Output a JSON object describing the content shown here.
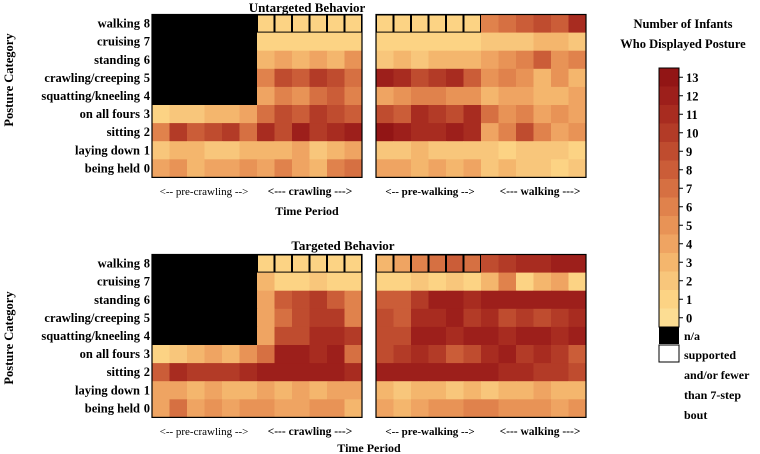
{
  "panels": [
    {
      "title": "Untargeted Behavior",
      "ylabel": "Posture Category",
      "xlabel": "Time Period",
      "period_labels": [
        "<-- pre-crawling -->",
        "<--- crawling --->",
        "<-- pre-walking -->",
        "<--- walking --->"
      ]
    },
    {
      "title": "Targeted Behavior",
      "ylabel": "Posture Category",
      "xlabel": "Time Period",
      "period_labels": [
        "<-- pre-crawling -->",
        "<--- crawling --->",
        "<-- pre-walking -->",
        "<--- walking --->"
      ]
    }
  ],
  "legend": {
    "title_line1": "Number of Infants",
    "title_line2": "Who Displayed Posture",
    "na_label": "n/a",
    "supported_lines": [
      "supported",
      "and/or fewer",
      "than 7-step",
      "bout"
    ]
  },
  "chart_data": [
    {
      "type": "heatmap",
      "title": "Untargeted Behavior",
      "xlabel": "Time Period",
      "ylabel": "Posture Category",
      "rows": [
        "walking",
        "cruising",
        "standing",
        "crawling/creeping",
        "squatting/kneeling",
        "on all fours",
        "sitting",
        "laying down",
        "being held"
      ],
      "row_codes": [
        8,
        7,
        6,
        5,
        4,
        3,
        2,
        1,
        0
      ],
      "colorbar": {
        "min": 0,
        "max": 13,
        "ticks": [
          0,
          1,
          2,
          3,
          4,
          5,
          6,
          7,
          8,
          9,
          10,
          11,
          12,
          13
        ],
        "label": "Number of Infants Who Displayed Posture"
      },
      "special_values": {
        "n/a": "black",
        "supported and/or fewer than 7-step bout": "white"
      },
      "blocks": [
        {
          "periods": [
            "pre-crawling",
            "crawling"
          ],
          "columns": 12,
          "values": [
            [
              "n/a",
              "n/a",
              "n/a",
              "n/a",
              "n/a",
              "n/a",
              1,
              1,
              1,
              1,
              1,
              1
            ],
            [
              "n/a",
              "n/a",
              "n/a",
              "n/a",
              "n/a",
              "n/a",
              1,
              1,
              1,
              1,
              1,
              1
            ],
            [
              "n/a",
              "n/a",
              "n/a",
              "n/a",
              "n/a",
              "n/a",
              3,
              4,
              3,
              4,
              3,
              5
            ],
            [
              "n/a",
              "n/a",
              "n/a",
              "n/a",
              "n/a",
              "n/a",
              6,
              9,
              8,
              10,
              9,
              7
            ],
            [
              "n/a",
              "n/a",
              "n/a",
              "n/a",
              "n/a",
              "n/a",
              4,
              6,
              5,
              7,
              8,
              6
            ],
            [
              1,
              2,
              2,
              3,
              3,
              4,
              7,
              9,
              8,
              10,
              9,
              8
            ],
            [
              6,
              10,
              8,
              9,
              10,
              7,
              11,
              9,
              12,
              10,
              11,
              12
            ],
            [
              2,
              3,
              3,
              2,
              2,
              3,
              3,
              3,
              4,
              2,
              3,
              4
            ],
            [
              4,
              5,
              3,
              4,
              4,
              5,
              4,
              6,
              4,
              3,
              6,
              7
            ]
          ]
        },
        {
          "periods": [
            "pre-walking",
            "walking"
          ],
          "columns": 12,
          "values": [
            [
              1,
              1,
              1,
              1,
              1,
              1,
              6,
              7,
              8,
              9,
              8,
              11
            ],
            [
              1,
              1,
              1,
              1,
              1,
              1,
              2,
              2,
              2,
              3,
              3,
              2
            ],
            [
              2,
              3,
              2,
              3,
              3,
              3,
              4,
              5,
              6,
              8,
              5,
              6
            ],
            [
              12,
              11,
              9,
              10,
              11,
              8,
              5,
              6,
              5,
              3,
              5,
              3
            ],
            [
              4,
              5,
              6,
              6,
              5,
              5,
              3,
              4,
              4,
              3,
              3,
              4
            ],
            [
              9,
              8,
              11,
              10,
              9,
              11,
              7,
              5,
              6,
              4,
              5,
              4
            ],
            [
              13,
              12,
              11,
              11,
              12,
              11,
              4,
              6,
              9,
              6,
              4,
              5
            ],
            [
              2,
              2,
              3,
              2,
              2,
              2,
              2,
              1,
              2,
              2,
              2,
              1
            ],
            [
              4,
              4,
              3,
              4,
              3,
              4,
              2,
              3,
              2,
              2,
              1,
              2
            ]
          ]
        }
      ]
    },
    {
      "type": "heatmap",
      "title": "Targeted Behavior",
      "xlabel": "Time Period",
      "ylabel": "Posture Category",
      "rows": [
        "walking",
        "cruising",
        "standing",
        "crawling/creeping",
        "squatting/kneeling",
        "on all fours",
        "sitting",
        "laying down",
        "being held"
      ],
      "row_codes": [
        8,
        7,
        6,
        5,
        4,
        3,
        2,
        1,
        0
      ],
      "colorbar": {
        "min": 0,
        "max": 13,
        "ticks": [
          0,
          1,
          2,
          3,
          4,
          5,
          6,
          7,
          8,
          9,
          10,
          11,
          12,
          13
        ],
        "label": "Number of Infants Who Displayed Posture"
      },
      "special_values": {
        "n/a": "black",
        "supported and/or fewer than 7-step bout": "white"
      },
      "blocks": [
        {
          "periods": [
            "pre-crawling",
            "crawling"
          ],
          "columns": 12,
          "values": [
            [
              "n/a",
              "n/a",
              "n/a",
              "n/a",
              "n/a",
              "n/a",
              1,
              1,
              1,
              1,
              1,
              1
            ],
            [
              "n/a",
              "n/a",
              "n/a",
              "n/a",
              "n/a",
              "n/a",
              3,
              1,
              1,
              2,
              1,
              1
            ],
            [
              "n/a",
              "n/a",
              "n/a",
              "n/a",
              "n/a",
              "n/a",
              4,
              8,
              9,
              10,
              8,
              6
            ],
            [
              "n/a",
              "n/a",
              "n/a",
              "n/a",
              "n/a",
              "n/a",
              4,
              7,
              9,
              10,
              10,
              6
            ],
            [
              "n/a",
              "n/a",
              "n/a",
              "n/a",
              "n/a",
              "n/a",
              4,
              9,
              9,
              11,
              11,
              10
            ],
            [
              1,
              2,
              3,
              4,
              3,
              5,
              7,
              12,
              12,
              11,
              12,
              7
            ],
            [
              8,
              11,
              10,
              10,
              10,
              11,
              12,
              12,
              12,
              12,
              12,
              11
            ],
            [
              4,
              4,
              3,
              4,
              3,
              3,
              4,
              3,
              4,
              3,
              4,
              4
            ],
            [
              4,
              7,
              4,
              5,
              4,
              5,
              5,
              4,
              4,
              5,
              5,
              3
            ]
          ]
        },
        {
          "periods": [
            "pre-walking",
            "walking"
          ],
          "columns": 12,
          "values": [
            [
              3,
              4,
              6,
              7,
              8,
              7,
              9,
              10,
              11,
              11,
              12,
              12
            ],
            [
              1,
              1,
              2,
              1,
              2,
              1,
              3,
              6,
              1,
              3,
              4,
              1
            ],
            [
              8,
              8,
              10,
              12,
              12,
              11,
              12,
              12,
              12,
              12,
              12,
              12
            ],
            [
              9,
              8,
              11,
              11,
              12,
              10,
              11,
              9,
              10,
              9,
              10,
              11
            ],
            [
              9,
              9,
              12,
              12,
              11,
              12,
              12,
              11,
              12,
              12,
              11,
              12
            ],
            [
              9,
              10,
              11,
              10,
              8,
              9,
              11,
              12,
              10,
              11,
              10,
              8
            ],
            [
              12,
              12,
              12,
              12,
              12,
              12,
              12,
              11,
              11,
              10,
              10,
              9
            ],
            [
              3,
              2,
              3,
              3,
              2,
              3,
              2,
              3,
              3,
              4,
              3,
              3
            ],
            [
              4,
              3,
              4,
              5,
              5,
              6,
              6,
              5,
              5,
              5,
              4,
              5
            ]
          ]
        }
      ]
    }
  ]
}
